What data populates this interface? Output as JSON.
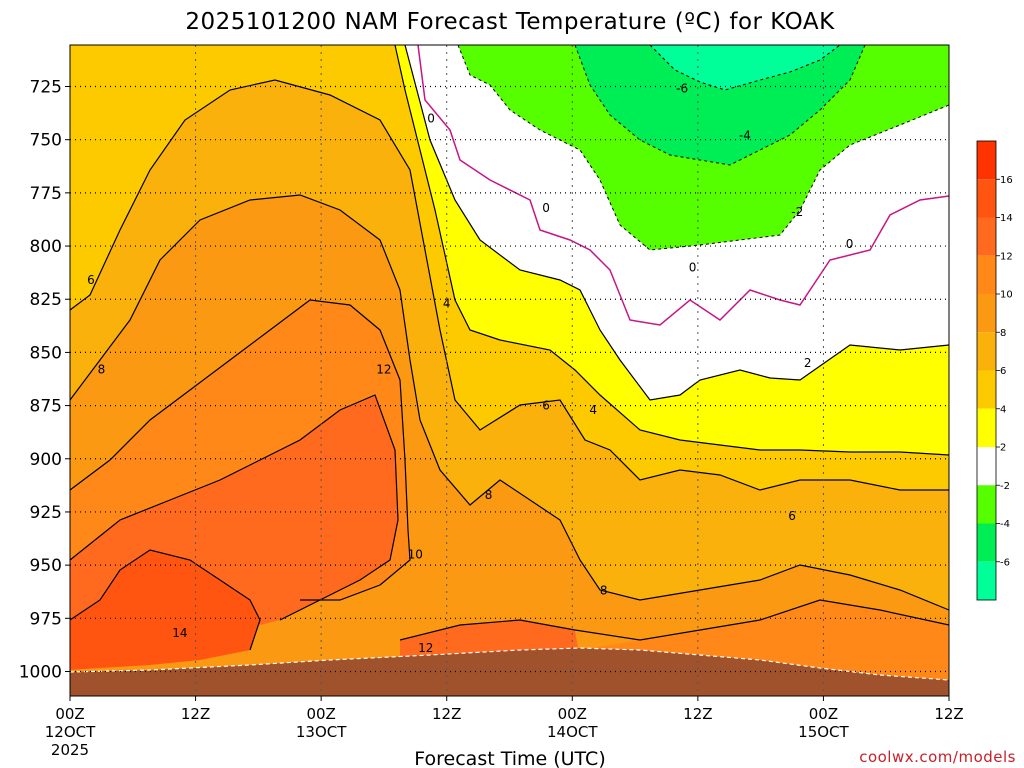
{
  "chart_data": {
    "type": "heatmap",
    "title": "2025101200 NAM Forecast Temperature (ºC) for KOAK",
    "xlabel": "Forecast Time (UTC)",
    "credit": "coolwx.com/models",
    "y_ticks": [
      "725",
      "750",
      "775",
      "800",
      "825",
      "850",
      "875",
      "900",
      "925",
      "950",
      "975",
      "1000"
    ],
    "y_levels": [
      725,
      750,
      775,
      800,
      825,
      850,
      875,
      900,
      925,
      950,
      975,
      1000
    ],
    "ylim": [
      1000,
      712
    ],
    "x_ticks": [
      {
        "hour": 0,
        "line1": "00Z",
        "line2": "12OCT",
        "line3": "2025"
      },
      {
        "hour": 12,
        "line1": "12Z",
        "line2": "",
        "line3": ""
      },
      {
        "hour": 24,
        "line1": "00Z",
        "line2": "13OCT",
        "line3": ""
      },
      {
        "hour": 36,
        "line1": "12Z",
        "line2": "",
        "line3": ""
      },
      {
        "hour": 48,
        "line1": "00Z",
        "line2": "14OCT",
        "line3": ""
      },
      {
        "hour": 60,
        "line1": "12Z",
        "line2": "",
        "line3": ""
      },
      {
        "hour": 72,
        "line1": "00Z",
        "line2": "15OCT",
        "line3": ""
      },
      {
        "hour": 84,
        "line1": "12Z",
        "line2": "",
        "line3": ""
      }
    ],
    "xlim": [
      0,
      84
    ],
    "colorbar": {
      "labels": [
        "16",
        "14",
        "12",
        "10",
        "8",
        "6",
        "4",
        "2",
        "-2",
        "-4",
        "-6"
      ],
      "bins": [
        {
          "from": 18,
          "to": 16,
          "color": "#ff3300"
        },
        {
          "from": 16,
          "to": 14,
          "color": "#ff5511"
        },
        {
          "from": 14,
          "to": 12,
          "color": "#ff6a1e"
        },
        {
          "from": 12,
          "to": 10,
          "color": "#ff8818"
        },
        {
          "from": 10,
          "to": 8,
          "color": "#fb9a12"
        },
        {
          "from": 8,
          "to": 6,
          "color": "#fbb10c"
        },
        {
          "from": 6,
          "to": 4,
          "color": "#fdca00"
        },
        {
          "from": 4,
          "to": 2,
          "color": "#ffff00"
        },
        {
          "from": 2,
          "to": -2,
          "color": "#ffffff"
        },
        {
          "from": -2,
          "to": -4,
          "color": "#55ff00"
        },
        {
          "from": -4,
          "to": -6,
          "color": "#00ee55"
        },
        {
          "from": -6,
          "to": -8,
          "color": "#00ff99"
        }
      ]
    },
    "contour_labels": [
      {
        "text": "0",
        "hour": 34.5,
        "p": 740
      },
      {
        "text": "0",
        "hour": 45.5,
        "p": 782
      },
      {
        "text": "0",
        "hour": 59.5,
        "p": 810
      },
      {
        "text": "0",
        "hour": 74.5,
        "p": 799
      },
      {
        "text": "-6",
        "hour": 58.5,
        "p": 726
      },
      {
        "text": "-4",
        "hour": 64.5,
        "p": 748
      },
      {
        "text": "-2",
        "hour": 69.5,
        "p": 784
      },
      {
        "text": "2",
        "hour": 70.5,
        "p": 855
      },
      {
        "text": "4",
        "hour": 36.0,
        "p": 827
      },
      {
        "text": "4",
        "hour": 50.0,
        "p": 877
      },
      {
        "text": "6",
        "hour": 2.0,
        "p": 816
      },
      {
        "text": "6",
        "hour": 45.5,
        "p": 875
      },
      {
        "text": "6",
        "hour": 69.0,
        "p": 927
      },
      {
        "text": "8",
        "hour": 3.0,
        "p": 858
      },
      {
        "text": "8",
        "hour": 40.0,
        "p": 917
      },
      {
        "text": "8",
        "hour": 51.0,
        "p": 962
      },
      {
        "text": "10",
        "hour": 33.0,
        "p": 945
      },
      {
        "text": "12",
        "hour": 30.0,
        "p": 858
      },
      {
        "text": "12",
        "hour": 34.0,
        "p": 989
      },
      {
        "text": "14",
        "hour": 10.5,
        "p": 982
      }
    ],
    "terrain_color": "#a0522d",
    "contour_zero_color": "#c71585"
  }
}
